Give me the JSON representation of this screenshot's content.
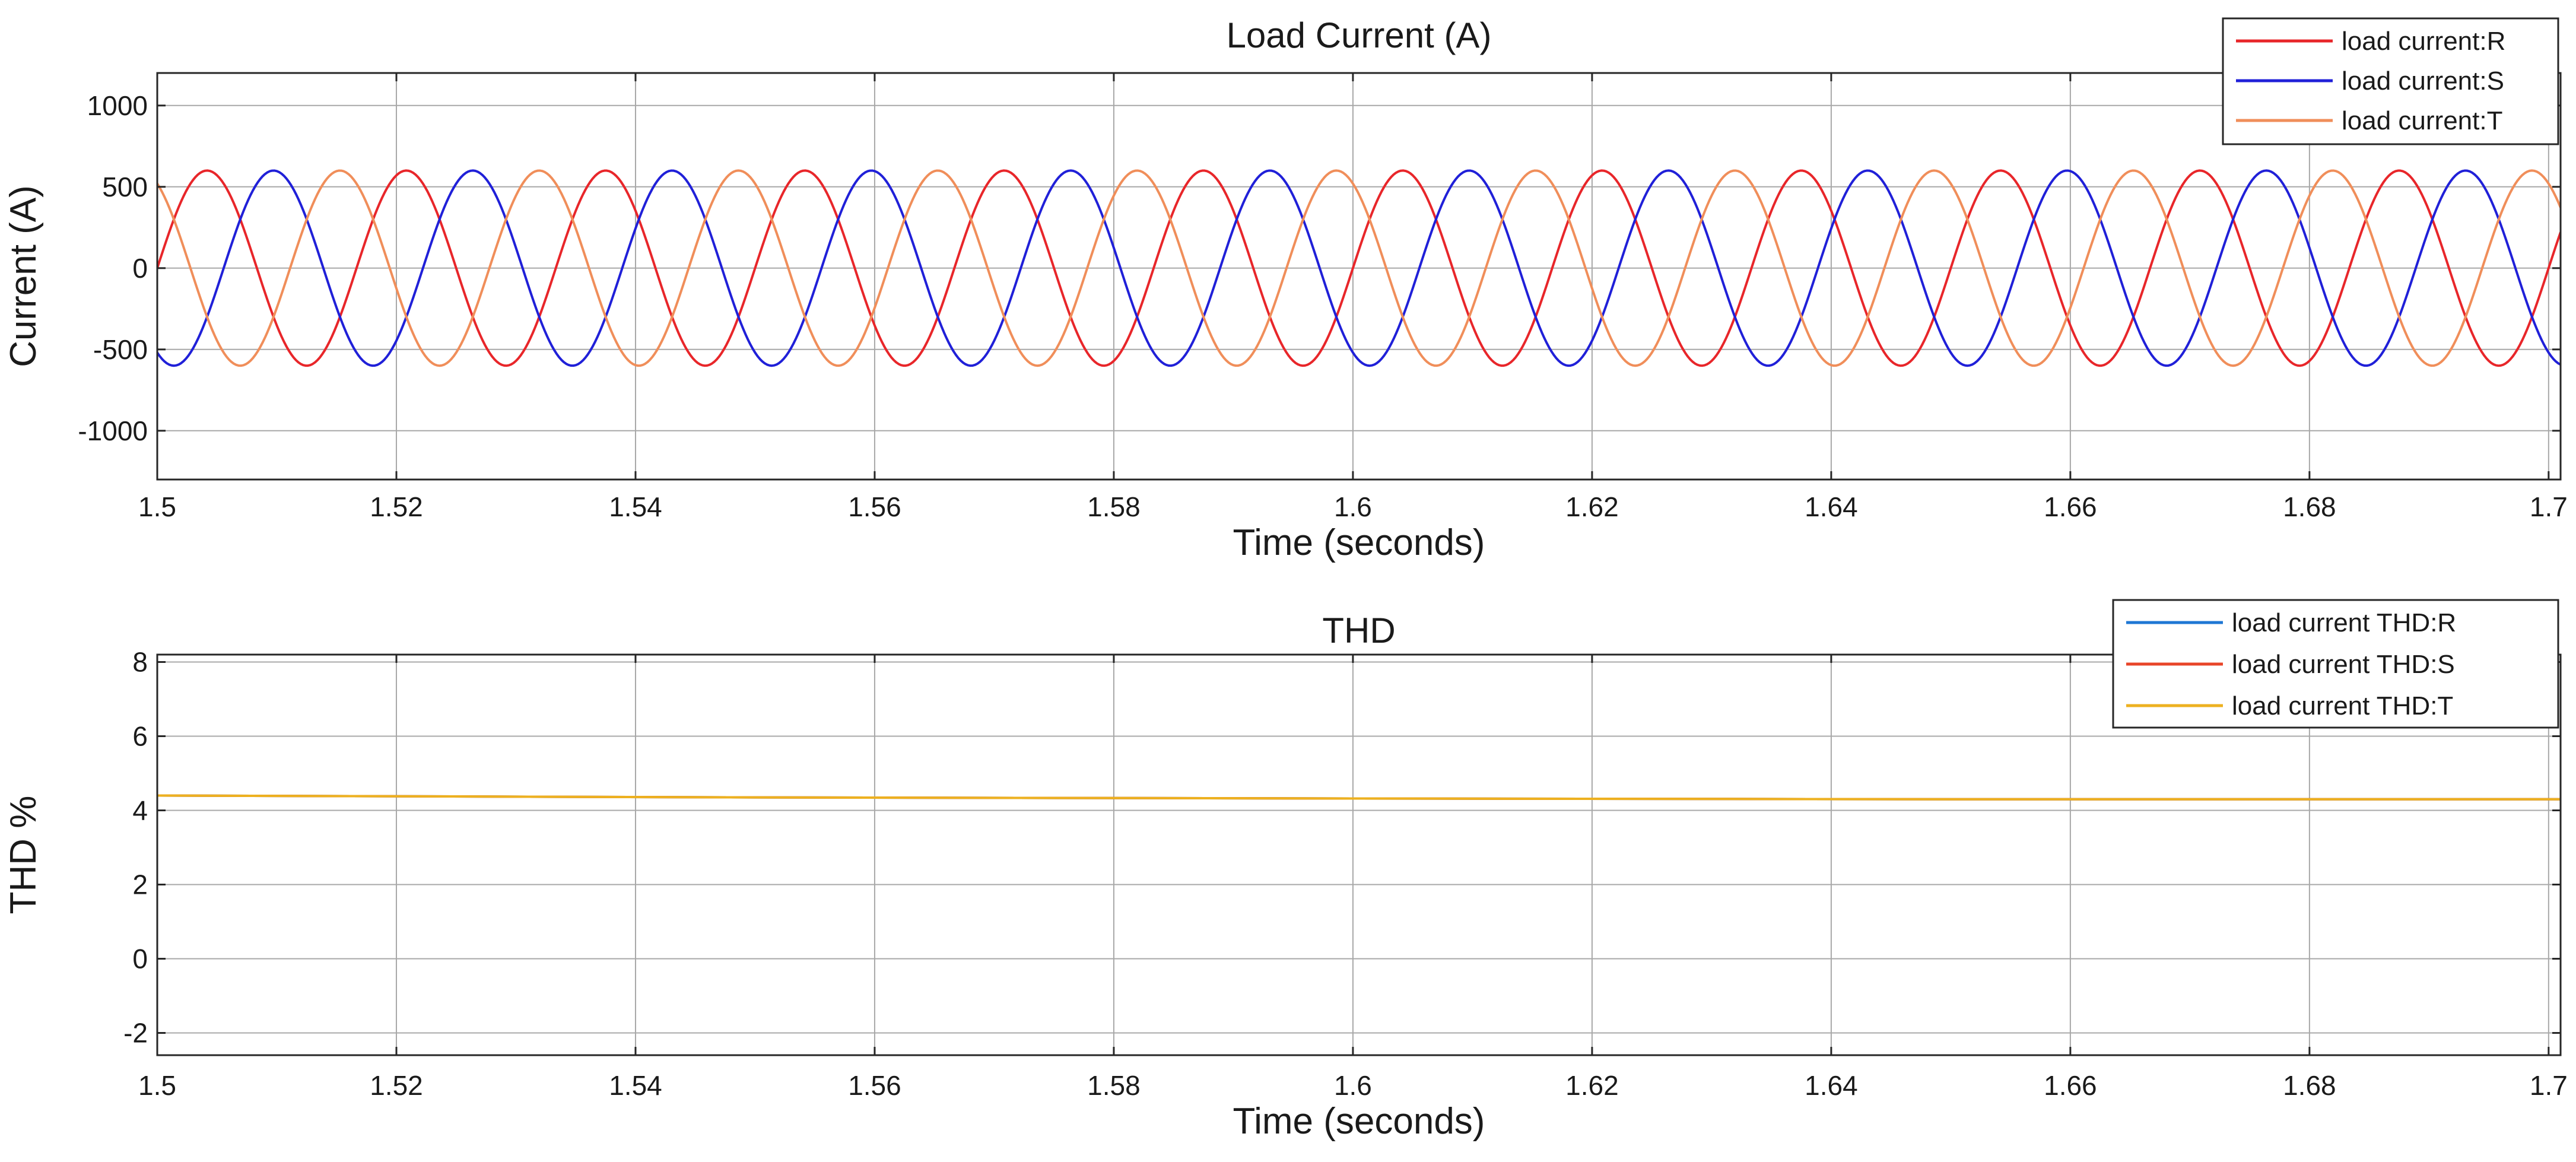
{
  "chart_data": [
    {
      "type": "line",
      "title": "Load Current (A)",
      "xlabel": "Time (seconds)",
      "ylabel": "Current (A)",
      "xlim": [
        1.5,
        1.701
      ],
      "ylim": [
        -1300,
        1200
      ],
      "x_ticks": [
        1.5,
        1.52,
        1.54,
        1.56,
        1.58,
        1.6,
        1.62,
        1.64,
        1.66,
        1.68,
        1.7
      ],
      "x_tick_labels": [
        "1.5",
        "1.52",
        "1.54",
        "1.56",
        "1.58",
        "1.6",
        "1.62",
        "1.64",
        "1.66",
        "1.68",
        "1.7"
      ],
      "y_ticks": [
        -1000,
        -500,
        0,
        500,
        1000
      ],
      "y_tick_labels": [
        "-1000",
        "-500",
        "0",
        "500",
        "1000"
      ],
      "grid": true,
      "legend_position": "top-right",
      "waveform": {
        "shape": "sine",
        "amplitude": 600,
        "frequency_hz": 60,
        "sample_step": 0.0002
      },
      "series": [
        {
          "name": "load current:R",
          "color": "#e8262a",
          "phase_deg": 0
        },
        {
          "name": "load current:S",
          "color": "#2020d8",
          "phase_deg": -120
        },
        {
          "name": "load current:T",
          "color": "#f08e5a",
          "phase_deg": 120
        }
      ]
    },
    {
      "type": "line",
      "title": "THD",
      "xlabel": "Time (seconds)",
      "ylabel": "THD %",
      "xlim": [
        1.5,
        1.701
      ],
      "ylim": [
        -2.6,
        8.2
      ],
      "x_ticks": [
        1.5,
        1.52,
        1.54,
        1.56,
        1.58,
        1.6,
        1.62,
        1.64,
        1.66,
        1.68,
        1.7
      ],
      "x_tick_labels": [
        "1.5",
        "1.52",
        "1.54",
        "1.56",
        "1.58",
        "1.6",
        "1.62",
        "1.64",
        "1.66",
        "1.68",
        "1.7"
      ],
      "y_ticks": [
        -2,
        0,
        2,
        4,
        6,
        8
      ],
      "y_tick_labels": [
        "-2",
        "0",
        "2",
        "4",
        "6",
        "8"
      ],
      "grid": true,
      "legend_position": "top-right",
      "x": [
        1.5,
        1.55,
        1.6,
        1.65,
        1.701
      ],
      "series": [
        {
          "name": "load current THD:R",
          "color": "#1f77d4",
          "values": [
            4.4,
            4.35,
            4.32,
            4.3,
            4.3
          ]
        },
        {
          "name": "load current THD:S",
          "color": "#e8452a",
          "values": [
            4.4,
            4.35,
            4.32,
            4.3,
            4.3
          ]
        },
        {
          "name": "load current THD:T",
          "color": "#edb120",
          "values": [
            4.4,
            4.35,
            4.32,
            4.3,
            4.3
          ]
        }
      ]
    }
  ]
}
